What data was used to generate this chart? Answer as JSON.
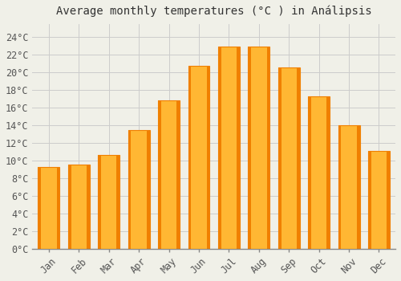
{
  "title": "Average monthly temperatures (°C ) in Análipsis",
  "months": [
    "Jan",
    "Feb",
    "Mar",
    "Apr",
    "May",
    "Jun",
    "Jul",
    "Aug",
    "Sep",
    "Oct",
    "Nov",
    "Dec"
  ],
  "values": [
    9.3,
    9.5,
    10.6,
    13.4,
    16.8,
    20.7,
    22.9,
    22.9,
    20.5,
    17.3,
    14.0,
    11.1
  ],
  "bar_color_center": "#FFB733",
  "bar_color_edge": "#F08000",
  "background_color": "#F0F0E8",
  "plot_bg_color": "#F0F0E8",
  "grid_color": "#CCCCCC",
  "yticks": [
    0,
    2,
    4,
    6,
    8,
    10,
    12,
    14,
    16,
    18,
    20,
    22,
    24
  ],
  "ylim": [
    0,
    25.5
  ],
  "title_fontsize": 10,
  "tick_fontsize": 8.5,
  "bar_width": 0.72
}
